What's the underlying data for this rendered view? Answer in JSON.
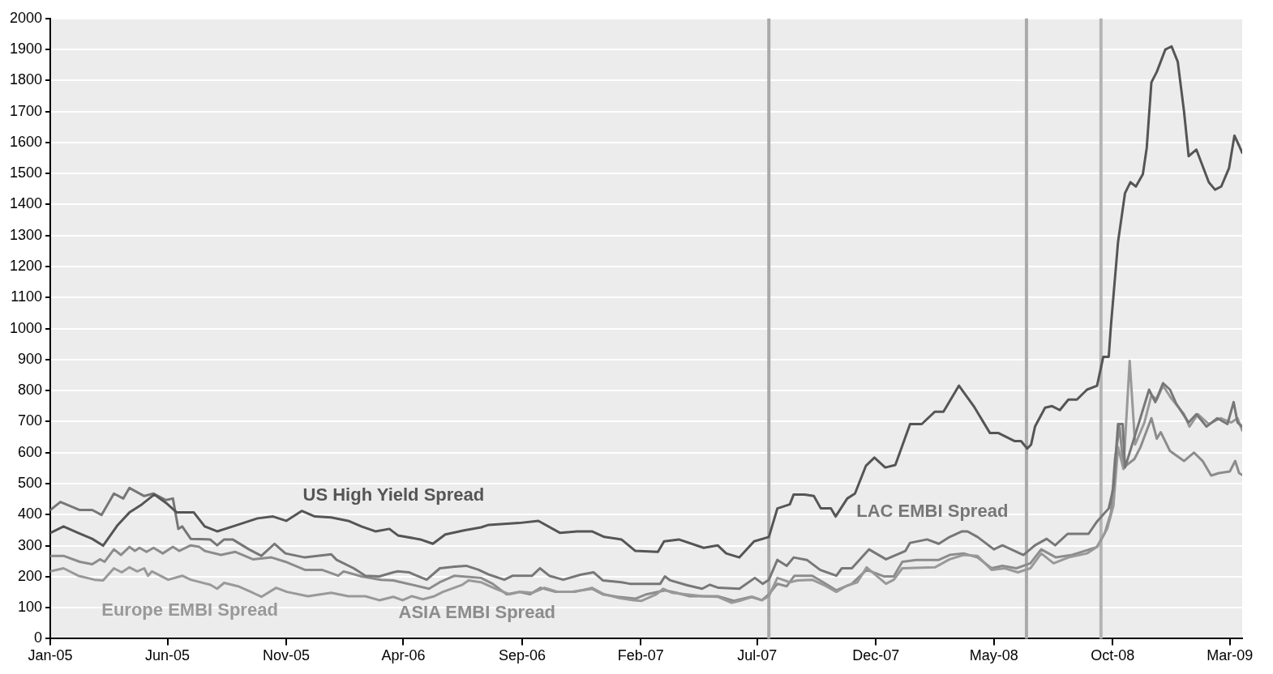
{
  "chart_data": {
    "type": "line",
    "grid": "y",
    "legend": false,
    "marker": "none",
    "line_style": "solid",
    "xlim": [
      "2005-01-01",
      "2009-03-17"
    ],
    "xticks": [
      {
        "value": "2005-01",
        "label": "Jan-05"
      },
      {
        "value": "2005-06",
        "label": "Jun-05"
      },
      {
        "value": "2005-11",
        "label": "Nov-05"
      },
      {
        "value": "2006-04",
        "label": "Apr-06"
      },
      {
        "value": "2006-09",
        "label": "Sep-06"
      },
      {
        "value": "2007-02",
        "label": "Feb-07"
      },
      {
        "value": "2007-07",
        "label": "Jul-07"
      },
      {
        "value": "2007-12",
        "label": "Dec-07"
      },
      {
        "value": "2008-05",
        "label": "May-08"
      },
      {
        "value": "2008-10",
        "label": "Oct-08"
      },
      {
        "value": "2009-03",
        "label": "Mar-09"
      }
    ],
    "ylim": [
      0,
      2000
    ],
    "yticks": [
      0,
      100,
      200,
      300,
      400,
      500,
      600,
      700,
      800,
      900,
      1000,
      1100,
      1200,
      1300,
      1400,
      1500,
      1600,
      1700,
      1800,
      1900,
      2000
    ],
    "ref_lines": [
      {
        "axis": "x",
        "value": "2007-07-16",
        "color": "#aaaaaa"
      },
      {
        "axis": "x",
        "value": "2008-06-12",
        "color": "#aaaaaa"
      },
      {
        "axis": "x",
        "value": "2008-09-16",
        "color": "#b4b4b4"
      }
    ],
    "series": [
      {
        "name": "US High Yield Spread",
        "color": "#555555",
        "x": [
          "2005-01-01",
          "2005-01-18",
          "2005-02-06",
          "2005-02-24",
          "2005-03-10",
          "2005-03-29",
          "2005-04-13",
          "2005-04-29",
          "2005-05-15",
          "2005-05-30",
          "2005-06-13",
          "2005-07-05",
          "2005-07-19",
          "2005-08-04",
          "2005-08-24",
          "2005-09-25",
          "2005-10-15",
          "2005-11-01",
          "2005-11-21",
          "2005-12-08",
          "2005-12-29",
          "2006-01-20",
          "2006-02-06",
          "2006-02-24",
          "2006-03-14",
          "2006-03-25",
          "2006-04-23",
          "2006-05-09",
          "2006-05-25",
          "2006-06-18",
          "2006-07-10",
          "2006-07-20",
          "2006-08-28",
          "2006-09-22",
          "2006-10-20",
          "2006-11-11",
          "2006-11-30",
          "2006-12-16",
          "2007-01-07",
          "2007-01-25",
          "2007-02-23",
          "2007-03-03",
          "2007-03-22",
          "2007-04-23",
          "2007-05-11",
          "2007-05-22",
          "2007-06-08",
          "2007-06-27",
          "2007-07-16",
          "2007-07-27",
          "2007-08-12",
          "2007-08-17",
          "2007-08-31",
          "2007-09-12",
          "2007-09-21",
          "2007-10-04",
          "2007-10-10",
          "2007-10-25",
          "2007-11-04",
          "2007-11-18",
          "2007-11-29",
          "2007-12-13",
          "2007-12-26",
          "2008-01-14",
          "2008-01-29",
          "2008-02-15",
          "2008-02-26",
          "2008-03-17",
          "2008-04-05",
          "2008-04-26",
          "2008-05-07",
          "2008-05-28",
          "2008-06-05",
          "2008-06-13",
          "2008-06-18",
          "2008-06-23",
          "2008-07-06",
          "2008-07-15",
          "2008-07-25",
          "2008-08-05",
          "2008-08-16",
          "2008-08-29",
          "2008-09-11",
          "2008-09-19",
          "2008-09-26",
          "2008-09-29",
          "2008-10-08",
          "2008-10-17",
          "2008-10-24",
          "2008-10-31",
          "2008-11-09",
          "2008-11-14",
          "2008-11-20",
          "2008-11-27",
          "2008-12-08",
          "2008-12-16",
          "2008-12-24",
          "2009-01-01",
          "2009-01-07",
          "2009-01-17",
          "2009-02-02",
          "2009-02-10",
          "2009-02-18",
          "2009-02-28",
          "2009-03-07",
          "2009-03-13",
          "2009-03-17"
        ],
        "values": [
          341,
          362,
          341,
          322,
          300,
          367,
          407,
          433,
          465,
          438,
          407,
          407,
          362,
          346,
          362,
          388,
          394,
          380,
          412,
          394,
          391,
          380,
          362,
          346,
          354,
          333,
          320,
          306,
          336,
          349,
          359,
          367,
          373,
          380,
          341,
          346,
          346,
          328,
          320,
          283,
          280,
          314,
          320,
          293,
          301,
          275,
          262,
          314,
          328,
          420,
          433,
          465,
          465,
          460,
          420,
          420,
          394,
          452,
          468,
          557,
          584,
          552,
          560,
          692,
          692,
          732,
          732,
          816,
          750,
          663,
          663,
          637,
          637,
          613,
          626,
          684,
          745,
          750,
          737,
          771,
          771,
          803,
          816,
          909,
          909,
          1014,
          1279,
          1437,
          1472,
          1458,
          1498,
          1583,
          1794,
          1828,
          1900,
          1910,
          1860,
          1701,
          1556,
          1577,
          1472,
          1448,
          1458,
          1517,
          1622,
          1590,
          1567
        ]
      },
      {
        "name": "LAC EMBI Spread",
        "color": "#777777",
        "x": [
          "2005-01-01",
          "2005-01-14",
          "2005-02-08",
          "2005-02-24",
          "2005-03-08",
          "2005-03-24",
          "2005-04-05",
          "2005-04-13",
          "2005-05-02",
          "2005-05-14",
          "2005-05-30",
          "2005-06-08",
          "2005-06-15",
          "2005-06-20",
          "2005-07-01",
          "2005-07-26",
          "2005-08-04",
          "2005-08-13",
          "2005-08-24",
          "2005-09-14",
          "2005-09-30",
          "2005-10-17",
          "2005-10-31",
          "2005-11-25",
          "2005-12-29",
          "2006-01-05",
          "2006-01-27",
          "2006-02-11",
          "2006-03-01",
          "2006-03-19",
          "2006-03-25",
          "2006-04-08",
          "2006-05-01",
          "2006-05-18",
          "2006-06-06",
          "2006-06-21",
          "2006-07-07",
          "2006-07-21",
          "2006-08-09",
          "2006-08-20",
          "2006-09-14",
          "2006-09-24",
          "2006-10-06",
          "2006-10-24",
          "2006-11-15",
          "2006-12-02",
          "2006-12-14",
          "2007-01-07",
          "2007-01-18",
          "2007-02-26",
          "2007-03-04",
          "2007-03-11",
          "2007-04-02",
          "2007-04-21",
          "2007-05-01",
          "2007-05-12",
          "2007-06-08",
          "2007-06-28",
          "2007-07-08",
          "2007-07-16",
          "2007-07-27",
          "2007-08-08",
          "2007-08-17",
          "2007-09-03",
          "2007-09-20",
          "2007-10-11",
          "2007-10-18",
          "2007-10-31",
          "2007-11-22",
          "2007-12-14",
          "2008-01-08",
          "2008-01-14",
          "2008-02-05",
          "2008-02-20",
          "2008-03-05",
          "2008-03-21",
          "2008-03-28",
          "2008-04-10",
          "2008-05-01",
          "2008-05-12",
          "2008-06-08",
          "2008-06-23",
          "2008-07-08",
          "2008-07-19",
          "2008-08-04",
          "2008-08-31",
          "2008-09-11",
          "2008-09-26",
          "2008-10-02",
          "2008-10-08",
          "2008-10-14",
          "2008-10-17",
          "2008-11-04",
          "2008-11-17",
          "2008-11-25",
          "2008-12-05",
          "2008-12-14",
          "2008-12-22",
          "2009-01-07",
          "2009-01-17",
          "2009-01-30",
          "2009-02-13",
          "2009-02-26",
          "2009-03-06",
          "2009-03-11",
          "2009-03-17"
        ],
        "values": [
          415,
          441,
          415,
          415,
          399,
          468,
          452,
          486,
          460,
          468,
          447,
          452,
          354,
          362,
          322,
          320,
          301,
          320,
          320,
          288,
          267,
          306,
          275,
          262,
          272,
          254,
          227,
          203,
          201,
          214,
          217,
          214,
          190,
          227,
          232,
          235,
          222,
          206,
          190,
          203,
          203,
          227,
          203,
          190,
          206,
          214,
          188,
          182,
          177,
          177,
          201,
          188,
          172,
          161,
          174,
          164,
          161,
          196,
          177,
          190,
          254,
          235,
          262,
          254,
          222,
          203,
          227,
          227,
          288,
          256,
          283,
          309,
          320,
          306,
          328,
          346,
          346,
          328,
          288,
          301,
          270,
          301,
          322,
          301,
          338,
          338,
          378,
          420,
          486,
          692,
          692,
          552,
          697,
          803,
          763,
          824,
          803,
          758,
          697,
          724,
          684,
          711,
          692,
          763,
          697,
          684
        ]
      },
      {
        "name": "Europe EMBI Spread",
        "color": "#999999",
        "x": [
          "2005-01-01",
          "2005-01-18",
          "2005-02-06",
          "2005-02-27",
          "2005-03-10",
          "2005-03-24",
          "2005-04-03",
          "2005-04-13",
          "2005-04-23",
          "2005-05-02",
          "2005-05-07",
          "2005-05-12",
          "2005-06-02",
          "2005-06-20",
          "2005-07-01",
          "2005-07-26",
          "2005-08-04",
          "2005-08-13",
          "2005-08-31",
          "2005-09-19",
          "2005-09-30",
          "2005-10-19",
          "2005-11-02",
          "2005-11-29",
          "2005-12-29",
          "2006-01-20",
          "2006-02-11",
          "2006-03-01",
          "2006-03-19",
          "2006-03-31",
          "2006-04-12",
          "2006-04-26",
          "2006-05-11",
          "2006-05-22",
          "2006-06-16",
          "2006-06-24",
          "2006-07-10",
          "2006-07-29",
          "2006-08-16",
          "2006-08-30",
          "2006-09-14",
          "2006-09-30",
          "2006-10-17",
          "2006-11-08",
          "2006-11-30",
          "2006-12-14",
          "2007-01-02",
          "2007-01-23",
          "2007-02-02",
          "2007-02-21",
          "2007-03-02",
          "2007-03-13",
          "2007-04-01",
          "2007-04-22",
          "2007-05-11",
          "2007-05-29",
          "2007-06-11",
          "2007-06-25",
          "2007-07-07",
          "2007-07-16",
          "2007-07-27",
          "2007-08-12",
          "2007-08-22",
          "2007-09-10",
          "2007-09-28",
          "2007-10-11",
          "2007-10-23",
          "2007-11-07",
          "2007-11-19",
          "2007-12-14",
          "2007-12-24",
          "2008-01-04",
          "2008-02-15",
          "2008-03-05",
          "2008-03-23",
          "2008-04-10",
          "2008-04-28",
          "2008-05-15",
          "2008-06-01",
          "2008-06-17",
          "2008-07-01",
          "2008-07-17",
          "2008-08-05",
          "2008-08-29",
          "2008-09-11",
          "2008-09-24",
          "2008-10-02",
          "2008-10-08",
          "2008-10-15",
          "2008-10-23",
          "2008-10-30",
          "2008-11-11",
          "2008-11-20",
          "2008-11-27",
          "2008-12-05",
          "2008-12-15",
          "2009-01-01",
          "2009-01-08",
          "2009-01-19",
          "2009-02-02",
          "2009-02-17",
          "2009-03-03",
          "2009-03-11",
          "2009-03-17"
        ],
        "values": [
          217,
          227,
          203,
          190,
          188,
          227,
          214,
          230,
          217,
          227,
          203,
          217,
          190,
          203,
          190,
          174,
          161,
          180,
          169,
          148,
          135,
          164,
          151,
          137,
          148,
          137,
          137,
          124,
          135,
          124,
          137,
          127,
          137,
          151,
          174,
          188,
          182,
          161,
          143,
          151,
          148,
          164,
          151,
          151,
          164,
          145,
          132,
          124,
          122,
          143,
          161,
          148,
          143,
          137,
          135,
          116,
          124,
          135,
          124,
          137,
          196,
          182,
          188,
          190,
          169,
          151,
          169,
          182,
          230,
          177,
          190,
          227,
          230,
          256,
          270,
          267,
          222,
          227,
          214,
          227,
          275,
          243,
          262,
          275,
          296,
          354,
          428,
          618,
          547,
          896,
          626,
          697,
          785,
          771,
          816,
          777,
          724,
          684,
          724,
          692,
          711,
          697,
          711,
          671
        ]
      },
      {
        "name": "ASIA EMBI Spread",
        "color": "#8c8c8c",
        "x": [
          "2005-01-01",
          "2005-01-18",
          "2005-02-08",
          "2005-02-24",
          "2005-03-06",
          "2005-03-12",
          "2005-03-24",
          "2005-04-02",
          "2005-04-13",
          "2005-04-20",
          "2005-04-26",
          "2005-05-05",
          "2005-05-14",
          "2005-05-26",
          "2005-06-08",
          "2005-06-16",
          "2005-07-01",
          "2005-07-12",
          "2005-07-19",
          "2005-08-09",
          "2005-08-27",
          "2005-09-19",
          "2005-10-13",
          "2005-10-31",
          "2005-11-25",
          "2005-12-17",
          "2006-01-07",
          "2006-01-14",
          "2006-02-06",
          "2006-03-03",
          "2006-03-19",
          "2006-05-04",
          "2006-05-18",
          "2006-06-06",
          "2006-07-10",
          "2006-07-25",
          "2006-08-12",
          "2006-08-28",
          "2006-09-11",
          "2006-09-25",
          "2006-10-14",
          "2006-11-05",
          "2006-11-30",
          "2006-12-14",
          "2007-01-02",
          "2007-01-25",
          "2007-02-08",
          "2007-03-04",
          "2007-03-19",
          "2007-04-05",
          "2007-05-11",
          "2007-06-01",
          "2007-06-23",
          "2007-07-07",
          "2007-07-16",
          "2007-07-27",
          "2007-08-08",
          "2007-08-18",
          "2007-09-10",
          "2007-09-24",
          "2007-10-11",
          "2007-10-31",
          "2007-11-19",
          "2007-12-11",
          "2007-12-24",
          "2008-01-04",
          "2008-01-22",
          "2008-02-20",
          "2008-03-05",
          "2008-03-23",
          "2008-04-10",
          "2008-04-28",
          "2008-05-12",
          "2008-05-30",
          "2008-06-17",
          "2008-07-01",
          "2008-07-20",
          "2008-08-10",
          "2008-08-26",
          "2008-09-11",
          "2008-09-21",
          "2008-09-29",
          "2008-10-04",
          "2008-10-10",
          "2008-10-15",
          "2008-10-29",
          "2008-11-06",
          "2008-11-20",
          "2008-11-27",
          "2008-12-02",
          "2008-12-14",
          "2009-01-01",
          "2009-01-14",
          "2009-01-25",
          "2009-02-05",
          "2009-02-15",
          "2009-03-01",
          "2009-03-08",
          "2009-03-13",
          "2009-03-17"
        ],
        "values": [
          267,
          267,
          248,
          240,
          256,
          248,
          288,
          270,
          296,
          283,
          293,
          280,
          293,
          275,
          296,
          283,
          301,
          296,
          283,
          270,
          280,
          256,
          262,
          248,
          222,
          222,
          203,
          217,
          201,
          190,
          188,
          161,
          182,
          203,
          196,
          177,
          143,
          151,
          143,
          164,
          151,
          151,
          161,
          143,
          135,
          129,
          143,
          156,
          148,
          137,
          137,
          122,
          135,
          124,
          143,
          177,
          169,
          203,
          203,
          182,
          156,
          177,
          222,
          201,
          201,
          248,
          254,
          254,
          270,
          275,
          262,
          227,
          235,
          227,
          243,
          288,
          262,
          270,
          283,
          296,
          341,
          407,
          579,
          684,
          552,
          579,
          618,
          711,
          645,
          666,
          605,
          573,
          600,
          573,
          526,
          534,
          539,
          573,
          534,
          528
        ]
      }
    ]
  }
}
